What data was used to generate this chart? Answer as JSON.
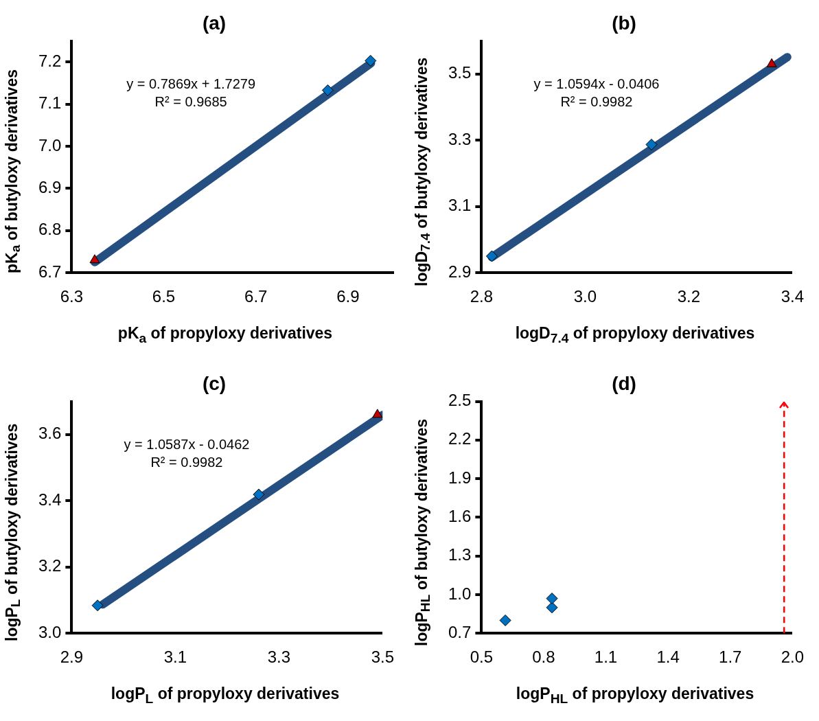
{
  "chart_data": [
    {
      "type": "scatter",
      "title": "(a)",
      "xlabel": "pK$_{a}$ of propyloxy derivatives",
      "ylabel": "pK$_{a}$ of butyloxy derivatives",
      "annotations": [
        "y = 0.7869x + 1.7279",
        "R² = 0.9685"
      ],
      "xlim": [
        6.3,
        7.0
      ],
      "xticks": [
        6.3,
        6.5,
        6.7,
        6.9
      ],
      "ylim": [
        6.7,
        7.25
      ],
      "yticks": [
        6.7,
        6.8,
        6.9,
        {
          "value": 7,
          "label": "7.0"
        },
        7.1,
        7.2
      ],
      "series": [
        {
          "type": "line",
          "color": "#254f80",
          "marker": "none",
          "x": [
            6.35,
            6.95
          ],
          "values": [
            6.725,
            7.197
          ]
        },
        {
          "type": "scatter",
          "color": "#0070c0",
          "marker": "diamond",
          "x": [
            6.856,
            6.949
          ],
          "values": [
            7.133,
            7.203
          ]
        },
        {
          "type": "scatter",
          "color": "#c00000",
          "marker": "triangle",
          "x": [
            6.35
          ],
          "values": [
            6.73
          ]
        }
      ]
    },
    {
      "type": "scatter",
      "title": "(b)",
      "xlabel": "logD$_{7.4}$ of propyloxy derivatives",
      "ylabel": "logD$_{7.4}$ of butyloxy derivatives",
      "annotations": [
        "y = 1.0594x - 0.0406",
        "R² = 0.9982"
      ],
      "xlim": [
        2.8,
        3.4
      ],
      "xticks": [
        2.8,
        {
          "value": 3,
          "label": "3.0"
        },
        3.2,
        3.4
      ],
      "ylim": [
        2.9,
        3.6
      ],
      "yticks": [
        2.9,
        3.1,
        3.3,
        3.5
      ],
      "series": [
        {
          "type": "line",
          "color": "#254f80",
          "marker": "none",
          "x": [
            2.82,
            3.39
          ],
          "values": [
            2.947,
            3.551
          ]
        },
        {
          "type": "scatter",
          "color": "#0070c0",
          "marker": "diamond",
          "x": [
            2.82,
            3.128
          ],
          "values": [
            2.95,
            3.287
          ]
        },
        {
          "type": "scatter",
          "color": "#c00000",
          "marker": "triangle",
          "x": [
            3.36
          ],
          "values": [
            3.53
          ]
        }
      ]
    },
    {
      "type": "scatter",
      "title": "(c)",
      "xlabel": "logP$_{L}$ of propyloxy derivatives",
      "ylabel": "logP$_{L}$ of butyloxy derivatives",
      "annotations": [
        "y = 1.0587x - 0.0462",
        "R² = 0.9982"
      ],
      "xlim": [
        2.9,
        3.5
      ],
      "xticks": [
        2.9,
        3.1,
        3.3,
        3.5
      ],
      "ylim": [
        3.0,
        3.7
      ],
      "yticks": [
        {
          "value": 3,
          "label": "3.0"
        },
        3.2,
        3.4,
        3.6
      ],
      "series": [
        {
          "type": "line",
          "color": "#254f80",
          "marker": "none",
          "x": [
            2.96,
            3.5
          ],
          "values": [
            3.087,
            3.659
          ]
        },
        {
          "type": "scatter",
          "color": "#0070c0",
          "marker": "diamond",
          "x": [
            2.95,
            3.261
          ],
          "values": [
            3.084,
            3.419
          ]
        },
        {
          "type": "scatter",
          "color": "#c00000",
          "marker": "triangle",
          "x": [
            3.49
          ],
          "values": [
            3.66
          ]
        }
      ]
    },
    {
      "type": "scatter",
      "title": "(d)",
      "xlabel": "logP$_{HL}$ of propyloxy derivatives",
      "ylabel": "logP$_{HL}$ of butyloxy derivatives",
      "xlim": [
        0.5,
        2.0
      ],
      "xticks": [
        0.5,
        0.8,
        1.1,
        1.4,
        1.7,
        {
          "value": 2,
          "label": "2.0"
        }
      ],
      "ylim": [
        0.7,
        2.5
      ],
      "yticks": [
        0.7,
        {
          "value": 1,
          "label": "1.0"
        },
        1.3,
        1.6,
        1.9,
        2.2,
        2.5
      ],
      "ref_lines": [
        {
          "axis": "x",
          "value": 1.96,
          "color": "#ff0000",
          "line_style": "dashed"
        }
      ],
      "series": [
        {
          "type": "scatter",
          "color": "#0070c0",
          "marker": "diamond",
          "x": [
            0.615,
            0.84,
            0.84
          ],
          "values": [
            0.8,
            0.9,
            0.97
          ]
        }
      ]
    }
  ]
}
